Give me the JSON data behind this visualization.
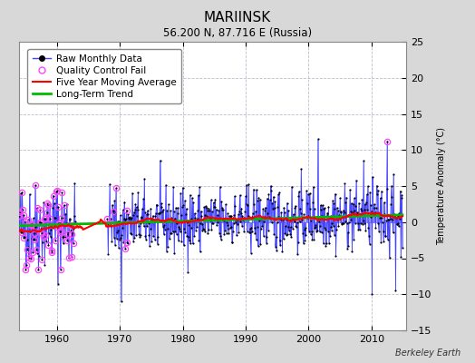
{
  "title": "MARIINSK",
  "subtitle": "56.200 N, 87.716 E (Russia)",
  "ylabel": "Temperature Anomaly (°C)",
  "credit": "Berkeley Earth",
  "xlim": [
    1954.0,
    2015.5
  ],
  "ylim": [
    -15,
    25
  ],
  "yticks": [
    -15,
    -10,
    -5,
    0,
    5,
    10,
    15,
    20,
    25
  ],
  "xticks": [
    1960,
    1970,
    1980,
    1990,
    2000,
    2010
  ],
  "bg_color": "#d8d8d8",
  "plot_bg_color": "#ffffff",
  "grid_color": "#bbbbcc",
  "raw_line_color": "#4444ff",
  "raw_marker_color": "#000000",
  "qc_fail_color": "#ff44ff",
  "moving_avg_color": "#ff0000",
  "trend_color": "#00bb00",
  "legend_fontsize": 7.5,
  "title_fontsize": 11,
  "subtitle_fontsize": 8.5,
  "tick_fontsize": 8
}
